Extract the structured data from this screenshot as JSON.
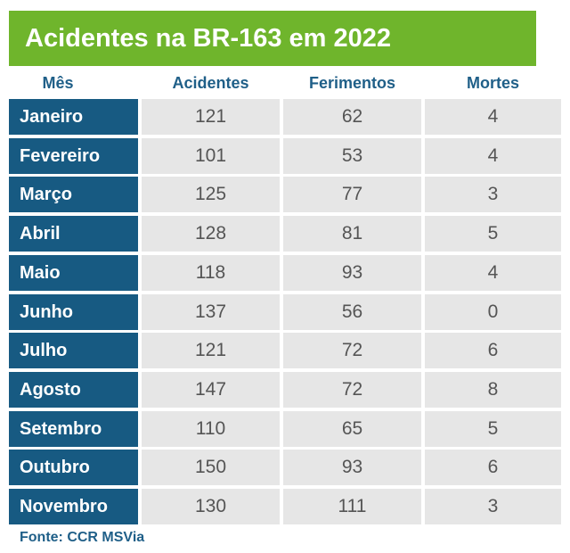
{
  "chart_data": {
    "type": "table",
    "title": "Acidentes na BR-163 em 2022",
    "columns": [
      "Mês",
      "Acidentes",
      "Ferimentos",
      "Mortes"
    ],
    "rows": [
      {
        "month": "Janeiro",
        "acidentes": 121,
        "ferimentos": 62,
        "mortes": 4
      },
      {
        "month": "Fevereiro",
        "acidentes": 101,
        "ferimentos": 53,
        "mortes": 4
      },
      {
        "month": "Março",
        "acidentes": 125,
        "ferimentos": 77,
        "mortes": 3
      },
      {
        "month": "Abril",
        "acidentes": 128,
        "ferimentos": 81,
        "mortes": 5
      },
      {
        "month": "Maio",
        "acidentes": 118,
        "ferimentos": 93,
        "mortes": 4
      },
      {
        "month": "Junho",
        "acidentes": 137,
        "ferimentos": 56,
        "mortes": 0
      },
      {
        "month": "Julho",
        "acidentes": 121,
        "ferimentos": 72,
        "mortes": 6
      },
      {
        "month": "Agosto",
        "acidentes": 147,
        "ferimentos": 72,
        "mortes": 8
      },
      {
        "month": "Setembro",
        "acidentes": 110,
        "ferimentos": 65,
        "mortes": 5
      },
      {
        "month": "Outubro",
        "acidentes": 150,
        "ferimentos": 93,
        "mortes": 6
      },
      {
        "month": "Novembro",
        "acidentes": 130,
        "ferimentos": 111,
        "mortes": 3
      }
    ],
    "source": "Fonte: CCR MSVia"
  },
  "colors": {
    "title_bg": "#6fb52c",
    "month_bg": "#175a82",
    "cell_bg": "#e6e6e6",
    "header_text": "#1f5f88"
  }
}
